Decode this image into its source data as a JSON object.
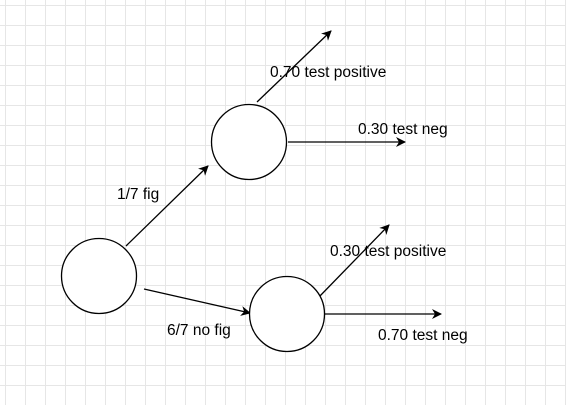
{
  "nodes": [
    {
      "id": "root",
      "label": ""
    },
    {
      "id": "fig",
      "label": ""
    },
    {
      "id": "no-fig",
      "label": ""
    }
  ],
  "edges": {
    "root_to_fig": "1/7 fig",
    "root_to_nofig": "6/7 no fig",
    "fig_test_positive": "0.70 test positive",
    "fig_test_neg": "0.30 test neg",
    "nofig_test_positive": "0.30 test positive",
    "nofig_test_neg": "0.70 test neg"
  }
}
